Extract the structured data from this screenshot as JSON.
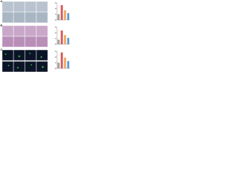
{
  "panels": [
    "A",
    "B",
    "C"
  ],
  "chart_data": [
    {
      "type": "bar",
      "categories": [
        null,
        null,
        null,
        null
      ],
      "values": [
        1.0,
        2.6,
        1.7,
        1.2
      ],
      "colors": [
        "#9e9e9e",
        "#d9534f",
        "#f0a35e",
        "#5b9bd5"
      ],
      "ylim": [
        0,
        3
      ],
      "yticks": [
        0,
        1,
        2,
        3
      ]
    },
    {
      "type": "bar",
      "categories": [
        null,
        null,
        null,
        null
      ],
      "values": [
        0.8,
        2.4,
        1.6,
        1.1
      ],
      "colors": [
        "#9e9e9e",
        "#d9534f",
        "#f0a35e",
        "#5b9bd5"
      ],
      "ylim": [
        0,
        3
      ],
      "yticks": [
        0,
        1,
        2,
        3
      ]
    },
    {
      "type": "bar",
      "categories": [
        null,
        null,
        null,
        null
      ],
      "values": [
        1.0,
        2.8,
        1.9,
        1.3
      ],
      "colors": [
        "#9e9e9e",
        "#d9534f",
        "#f0a35e",
        "#5b9bd5"
      ],
      "ylim": [
        0,
        3
      ],
      "yticks": [
        0,
        1,
        2,
        3
      ]
    }
  ]
}
